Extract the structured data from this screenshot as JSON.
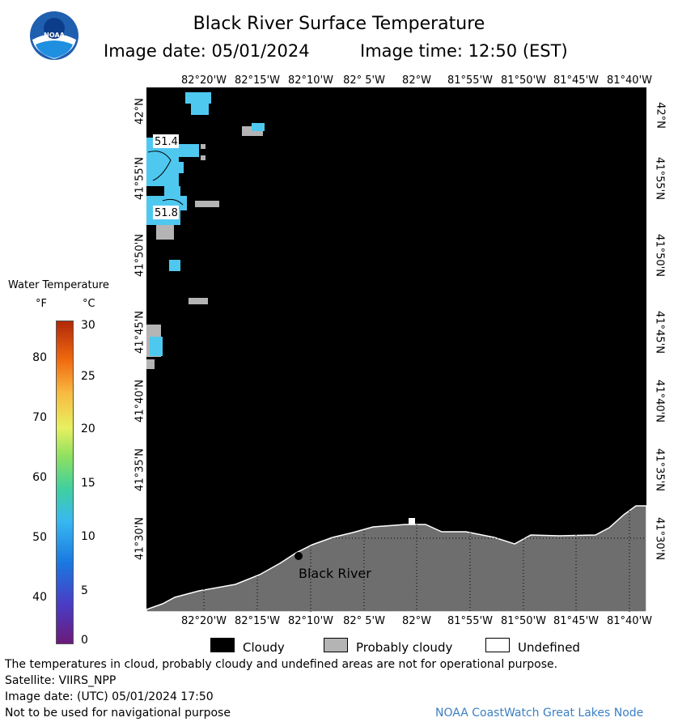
{
  "header": {
    "logo_text": "NOAA",
    "title": "Black River Surface Temperature",
    "image_date": "Image date: 05/01/2024",
    "image_time": "Image time: 12:50 (EST)"
  },
  "map": {
    "longitude_labels": [
      "82°20'W",
      "82°15'W",
      "82°10'W",
      "82° 5'W",
      "82°W",
      "81°55'W",
      "81°50'W",
      "81°45'W",
      "81°40'W"
    ],
    "latitude_labels": [
      "42°N",
      "41°55'N",
      "41°50'N",
      "41°45'N",
      "41°40'N",
      "41°35'N",
      "41°30'N"
    ],
    "location_label": "Black River",
    "temperature_labels": [
      "51.4",
      "51.8"
    ],
    "colors": {
      "land": "#6e6e6e",
      "water_no_data": "#000000",
      "water_temp": "#4fc8f0",
      "probably_cloudy": "#b4b4b4"
    }
  },
  "color_scale": {
    "title": "Water Temperature",
    "unit_f": "°F",
    "unit_c": "°C",
    "ticks_f": [
      "80",
      "70",
      "60",
      "50",
      "40"
    ],
    "ticks_c": [
      "30",
      "25",
      "20",
      "15",
      "10",
      "5",
      "0"
    ]
  },
  "legend": {
    "cloudy": "Cloudy",
    "probably_cloudy": "Probably cloudy",
    "undefined": "Undefined"
  },
  "footer": {
    "note": "The temperatures in cloud, probably cloudy and undefined areas are not for operational purpose.",
    "satellite": "Satellite: VIIRS_NPP",
    "utc_date": "Image date: (UTC) 05/01/2024  17:50",
    "nav_warning": "Not to be used for navigational purpose",
    "credit": "NOAA CoastWatch Great Lakes Node"
  }
}
